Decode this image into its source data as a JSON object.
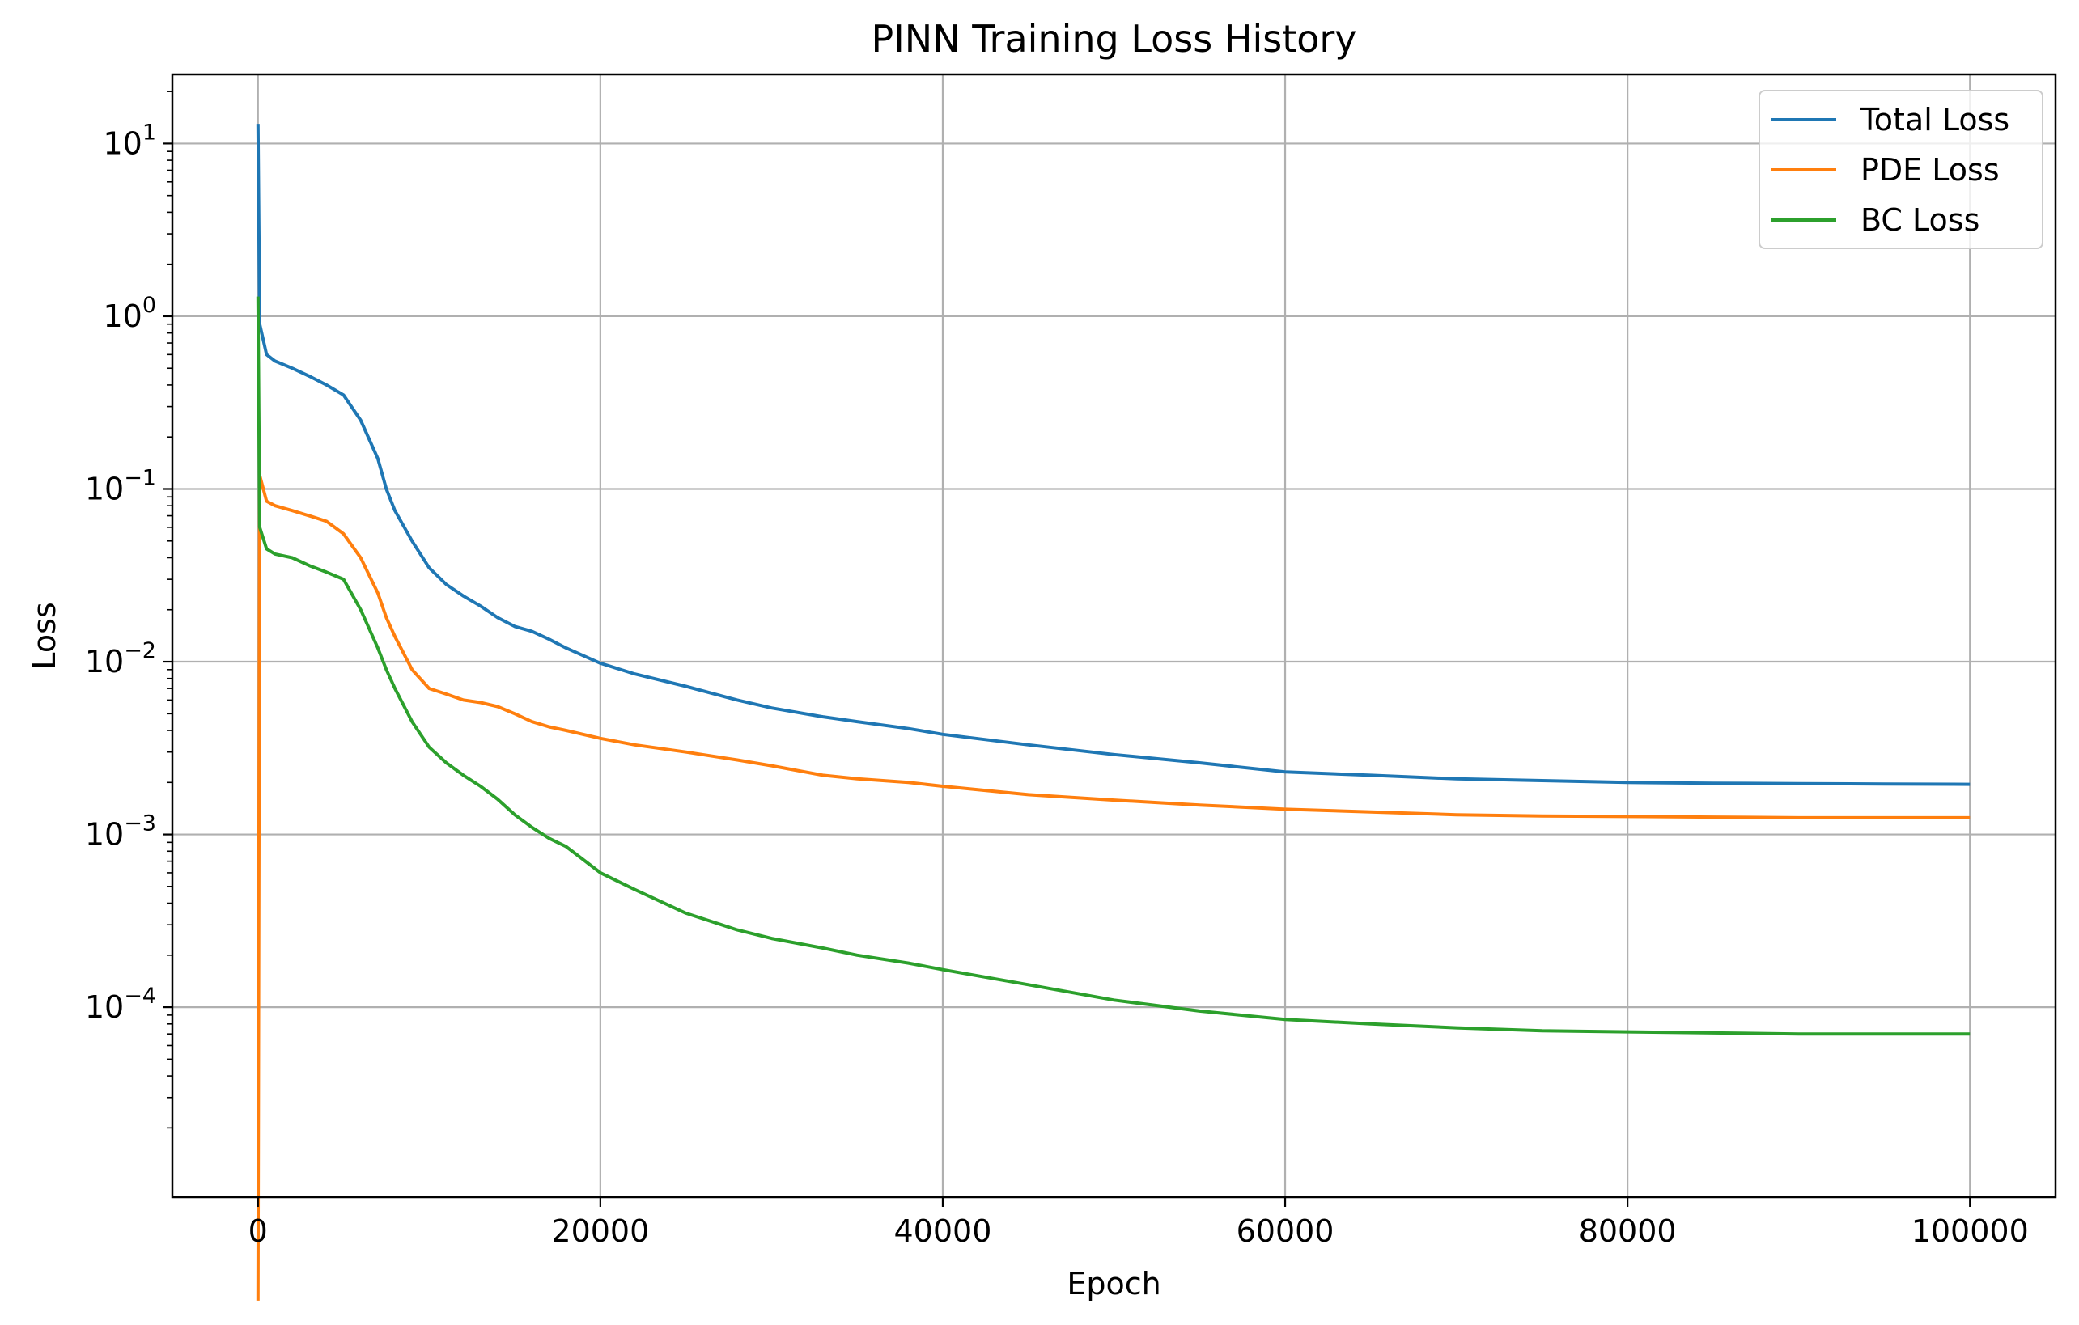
{
  "chart_data": {
    "type": "line",
    "title": "PINN Training Loss History",
    "xlabel": "Epoch",
    "ylabel": "Loss",
    "yscale": "log",
    "xlim": [
      -5000,
      105000
    ],
    "ylim_exp": [
      -5.1,
      1.4
    ],
    "x_ticks": [
      0,
      20000,
      40000,
      60000,
      80000,
      100000
    ],
    "x_tick_labels": [
      "0",
      "20000",
      "40000",
      "60000",
      "80000",
      "100000"
    ],
    "y_ticks_exp": [
      1,
      0,
      -1,
      -2,
      -3,
      -4
    ],
    "grid": true,
    "legend_position": "top-right",
    "series": [
      {
        "name": "Total Loss",
        "color": "#1f77b4",
        "x": [
          0,
          100,
          500,
          1000,
          2000,
          3000,
          4000,
          5000,
          6000,
          7000,
          7500,
          8000,
          9000,
          10000,
          11000,
          12000,
          13000,
          14000,
          15000,
          16000,
          17000,
          18000,
          20000,
          22000,
          25000,
          28000,
          30000,
          33000,
          35000,
          38000,
          40000,
          45000,
          50000,
          55000,
          60000,
          65000,
          70000,
          75000,
          80000,
          85000,
          90000,
          95000,
          100000
        ],
        "y": [
          13,
          0.9,
          0.6,
          0.55,
          0.5,
          0.45,
          0.4,
          0.35,
          0.25,
          0.15,
          0.1,
          0.075,
          0.05,
          0.035,
          0.028,
          0.024,
          0.021,
          0.018,
          0.016,
          0.015,
          0.0135,
          0.012,
          0.0098,
          0.0085,
          0.0072,
          0.006,
          0.0054,
          0.0048,
          0.0045,
          0.0041,
          0.0038,
          0.0033,
          0.0029,
          0.0026,
          0.0023,
          0.0022,
          0.0021,
          0.00205,
          0.002,
          0.00198,
          0.00197,
          0.00196,
          0.00195
        ]
      },
      {
        "name": "PDE Loss",
        "color": "#ff7f0e",
        "x": [
          0,
          100,
          500,
          1000,
          2000,
          3000,
          4000,
          5000,
          6000,
          7000,
          7500,
          8000,
          9000,
          10000,
          11000,
          12000,
          13000,
          14000,
          15000,
          16000,
          17000,
          18000,
          20000,
          22000,
          25000,
          28000,
          30000,
          33000,
          35000,
          38000,
          40000,
          45000,
          50000,
          55000,
          60000,
          65000,
          70000,
          75000,
          80000,
          85000,
          90000,
          95000,
          100000
        ],
        "y": [
          2e-06,
          0.12,
          0.085,
          0.08,
          0.075,
          0.07,
          0.065,
          0.055,
          0.04,
          0.025,
          0.018,
          0.014,
          0.009,
          0.007,
          0.0065,
          0.006,
          0.0058,
          0.0055,
          0.005,
          0.0045,
          0.0042,
          0.004,
          0.0036,
          0.0033,
          0.003,
          0.0027,
          0.0025,
          0.0022,
          0.0021,
          0.002,
          0.0019,
          0.0017,
          0.00158,
          0.00148,
          0.0014,
          0.00135,
          0.0013,
          0.00128,
          0.00127,
          0.00126,
          0.00125,
          0.00125,
          0.00125
        ]
      },
      {
        "name": "BC Loss",
        "color": "#2ca02c",
        "x": [
          0,
          100,
          500,
          1000,
          2000,
          3000,
          4000,
          5000,
          6000,
          7000,
          7500,
          8000,
          9000,
          10000,
          11000,
          12000,
          13000,
          14000,
          15000,
          16000,
          17000,
          18000,
          20000,
          22000,
          25000,
          28000,
          30000,
          33000,
          35000,
          38000,
          40000,
          45000,
          50000,
          55000,
          60000,
          65000,
          70000,
          75000,
          80000,
          85000,
          90000,
          95000,
          100000
        ],
        "y": [
          1.3,
          0.06,
          0.045,
          0.042,
          0.04,
          0.036,
          0.033,
          0.03,
          0.02,
          0.012,
          0.009,
          0.007,
          0.0045,
          0.0032,
          0.0026,
          0.0022,
          0.0019,
          0.0016,
          0.0013,
          0.0011,
          0.00095,
          0.00085,
          0.0006,
          0.00048,
          0.00035,
          0.00028,
          0.00025,
          0.00022,
          0.0002,
          0.00018,
          0.000165,
          0.000135,
          0.00011,
          9.5e-05,
          8.5e-05,
          8e-05,
          7.6e-05,
          7.3e-05,
          7.2e-05,
          7.1e-05,
          7e-05,
          7e-05,
          7e-05
        ]
      }
    ]
  }
}
